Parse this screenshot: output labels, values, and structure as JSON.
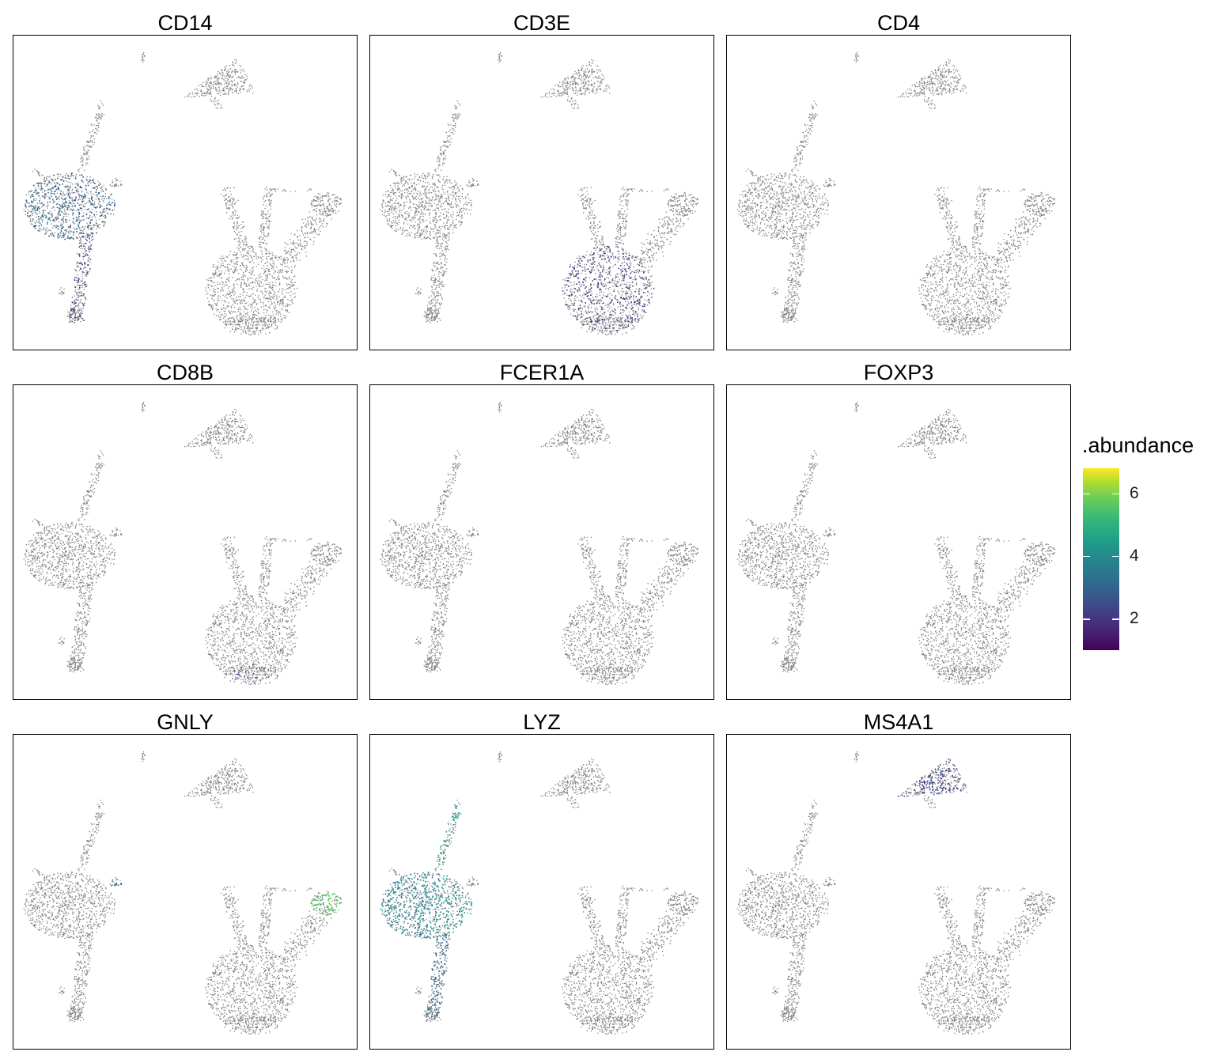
{
  "chart_data": {
    "type": "scatter",
    "description_kind": "faceted UMAP feature plots",
    "panels": [
      {
        "title": "CD14"
      },
      {
        "title": "CD3E"
      },
      {
        "title": "CD4"
      },
      {
        "title": "CD8B"
      },
      {
        "title": "FCER1A"
      },
      {
        "title": "FOXP3"
      },
      {
        "title": "GNLY"
      },
      {
        "title": "LYZ"
      },
      {
        "title": "MS4A1"
      }
    ],
    "legend": {
      "title": ".abundance",
      "ticks": [
        2,
        4,
        6
      ],
      "range": [
        1,
        6.8
      ],
      "palette": [
        "#440154",
        "#482878",
        "#3e4989",
        "#31688e",
        "#26828e",
        "#1f9e89",
        "#35b779",
        "#6ece58",
        "#b5de2b",
        "#fde725"
      ]
    },
    "background_color": "#7f7f7f",
    "expression": {
      "CD14": [
        {
          "cluster": "left_blob",
          "level": 2.8,
          "fraction": 0.45
        },
        {
          "cluster": "left_tail",
          "level": 2.2,
          "fraction": 0.35
        }
      ],
      "CD3E": [
        {
          "cluster": "right_blob",
          "level": 2.0,
          "fraction": 0.35
        }
      ],
      "CD4": [],
      "CD8B": [
        {
          "cluster": "right_blob_bottom",
          "level": 2.0,
          "fraction": 0.15
        }
      ],
      "FCER1A": [],
      "FOXP3": [],
      "GNLY": [
        {
          "cluster": "right_arm_end",
          "level": 5.2,
          "fraction": 0.55
        },
        {
          "cluster": "left_blob_spur",
          "level": 3.0,
          "fraction": 0.3
        }
      ],
      "LYZ": [
        {
          "cluster": "left_blob",
          "level": 3.6,
          "fraction": 0.6
        },
        {
          "cluster": "left_tail",
          "level": 3.0,
          "fraction": 0.5
        },
        {
          "cluster": "left_spike",
          "level": 4.0,
          "fraction": 0.5
        }
      ],
      "MS4A1": [
        {
          "cluster": "top_right",
          "level": 2.2,
          "fraction": 0.5
        }
      ]
    }
  }
}
